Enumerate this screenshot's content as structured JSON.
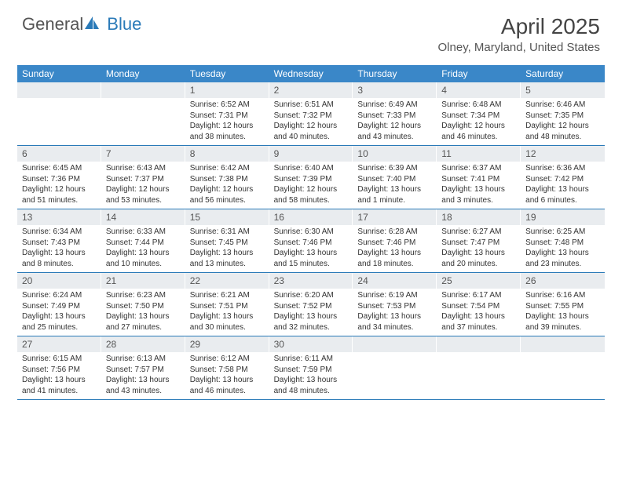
{
  "logo": {
    "text_part1": "General",
    "text_part2": "Blue"
  },
  "title": "April 2025",
  "location": "Olney, Maryland, United States",
  "day_headers": [
    "Sunday",
    "Monday",
    "Tuesday",
    "Wednesday",
    "Thursday",
    "Friday",
    "Saturday"
  ],
  "colors": {
    "header_bg": "#3a87c8",
    "rule": "#2a7ab8",
    "daynum_bg": "#e9ecef",
    "text": "#333333"
  },
  "weeks": [
    [
      {
        "num": "",
        "sunrise": "",
        "sunset": "",
        "daylight": ""
      },
      {
        "num": "",
        "sunrise": "",
        "sunset": "",
        "daylight": ""
      },
      {
        "num": "1",
        "sunrise": "Sunrise: 6:52 AM",
        "sunset": "Sunset: 7:31 PM",
        "daylight": "Daylight: 12 hours and 38 minutes."
      },
      {
        "num": "2",
        "sunrise": "Sunrise: 6:51 AM",
        "sunset": "Sunset: 7:32 PM",
        "daylight": "Daylight: 12 hours and 40 minutes."
      },
      {
        "num": "3",
        "sunrise": "Sunrise: 6:49 AM",
        "sunset": "Sunset: 7:33 PM",
        "daylight": "Daylight: 12 hours and 43 minutes."
      },
      {
        "num": "4",
        "sunrise": "Sunrise: 6:48 AM",
        "sunset": "Sunset: 7:34 PM",
        "daylight": "Daylight: 12 hours and 46 minutes."
      },
      {
        "num": "5",
        "sunrise": "Sunrise: 6:46 AM",
        "sunset": "Sunset: 7:35 PM",
        "daylight": "Daylight: 12 hours and 48 minutes."
      }
    ],
    [
      {
        "num": "6",
        "sunrise": "Sunrise: 6:45 AM",
        "sunset": "Sunset: 7:36 PM",
        "daylight": "Daylight: 12 hours and 51 minutes."
      },
      {
        "num": "7",
        "sunrise": "Sunrise: 6:43 AM",
        "sunset": "Sunset: 7:37 PM",
        "daylight": "Daylight: 12 hours and 53 minutes."
      },
      {
        "num": "8",
        "sunrise": "Sunrise: 6:42 AM",
        "sunset": "Sunset: 7:38 PM",
        "daylight": "Daylight: 12 hours and 56 minutes."
      },
      {
        "num": "9",
        "sunrise": "Sunrise: 6:40 AM",
        "sunset": "Sunset: 7:39 PM",
        "daylight": "Daylight: 12 hours and 58 minutes."
      },
      {
        "num": "10",
        "sunrise": "Sunrise: 6:39 AM",
        "sunset": "Sunset: 7:40 PM",
        "daylight": "Daylight: 13 hours and 1 minute."
      },
      {
        "num": "11",
        "sunrise": "Sunrise: 6:37 AM",
        "sunset": "Sunset: 7:41 PM",
        "daylight": "Daylight: 13 hours and 3 minutes."
      },
      {
        "num": "12",
        "sunrise": "Sunrise: 6:36 AM",
        "sunset": "Sunset: 7:42 PM",
        "daylight": "Daylight: 13 hours and 6 minutes."
      }
    ],
    [
      {
        "num": "13",
        "sunrise": "Sunrise: 6:34 AM",
        "sunset": "Sunset: 7:43 PM",
        "daylight": "Daylight: 13 hours and 8 minutes."
      },
      {
        "num": "14",
        "sunrise": "Sunrise: 6:33 AM",
        "sunset": "Sunset: 7:44 PM",
        "daylight": "Daylight: 13 hours and 10 minutes."
      },
      {
        "num": "15",
        "sunrise": "Sunrise: 6:31 AM",
        "sunset": "Sunset: 7:45 PM",
        "daylight": "Daylight: 13 hours and 13 minutes."
      },
      {
        "num": "16",
        "sunrise": "Sunrise: 6:30 AM",
        "sunset": "Sunset: 7:46 PM",
        "daylight": "Daylight: 13 hours and 15 minutes."
      },
      {
        "num": "17",
        "sunrise": "Sunrise: 6:28 AM",
        "sunset": "Sunset: 7:46 PM",
        "daylight": "Daylight: 13 hours and 18 minutes."
      },
      {
        "num": "18",
        "sunrise": "Sunrise: 6:27 AM",
        "sunset": "Sunset: 7:47 PM",
        "daylight": "Daylight: 13 hours and 20 minutes."
      },
      {
        "num": "19",
        "sunrise": "Sunrise: 6:25 AM",
        "sunset": "Sunset: 7:48 PM",
        "daylight": "Daylight: 13 hours and 23 minutes."
      }
    ],
    [
      {
        "num": "20",
        "sunrise": "Sunrise: 6:24 AM",
        "sunset": "Sunset: 7:49 PM",
        "daylight": "Daylight: 13 hours and 25 minutes."
      },
      {
        "num": "21",
        "sunrise": "Sunrise: 6:23 AM",
        "sunset": "Sunset: 7:50 PM",
        "daylight": "Daylight: 13 hours and 27 minutes."
      },
      {
        "num": "22",
        "sunrise": "Sunrise: 6:21 AM",
        "sunset": "Sunset: 7:51 PM",
        "daylight": "Daylight: 13 hours and 30 minutes."
      },
      {
        "num": "23",
        "sunrise": "Sunrise: 6:20 AM",
        "sunset": "Sunset: 7:52 PM",
        "daylight": "Daylight: 13 hours and 32 minutes."
      },
      {
        "num": "24",
        "sunrise": "Sunrise: 6:19 AM",
        "sunset": "Sunset: 7:53 PM",
        "daylight": "Daylight: 13 hours and 34 minutes."
      },
      {
        "num": "25",
        "sunrise": "Sunrise: 6:17 AM",
        "sunset": "Sunset: 7:54 PM",
        "daylight": "Daylight: 13 hours and 37 minutes."
      },
      {
        "num": "26",
        "sunrise": "Sunrise: 6:16 AM",
        "sunset": "Sunset: 7:55 PM",
        "daylight": "Daylight: 13 hours and 39 minutes."
      }
    ],
    [
      {
        "num": "27",
        "sunrise": "Sunrise: 6:15 AM",
        "sunset": "Sunset: 7:56 PM",
        "daylight": "Daylight: 13 hours and 41 minutes."
      },
      {
        "num": "28",
        "sunrise": "Sunrise: 6:13 AM",
        "sunset": "Sunset: 7:57 PM",
        "daylight": "Daylight: 13 hours and 43 minutes."
      },
      {
        "num": "29",
        "sunrise": "Sunrise: 6:12 AM",
        "sunset": "Sunset: 7:58 PM",
        "daylight": "Daylight: 13 hours and 46 minutes."
      },
      {
        "num": "30",
        "sunrise": "Sunrise: 6:11 AM",
        "sunset": "Sunset: 7:59 PM",
        "daylight": "Daylight: 13 hours and 48 minutes."
      },
      {
        "num": "",
        "sunrise": "",
        "sunset": "",
        "daylight": ""
      },
      {
        "num": "",
        "sunrise": "",
        "sunset": "",
        "daylight": ""
      },
      {
        "num": "",
        "sunrise": "",
        "sunset": "",
        "daylight": ""
      }
    ]
  ]
}
